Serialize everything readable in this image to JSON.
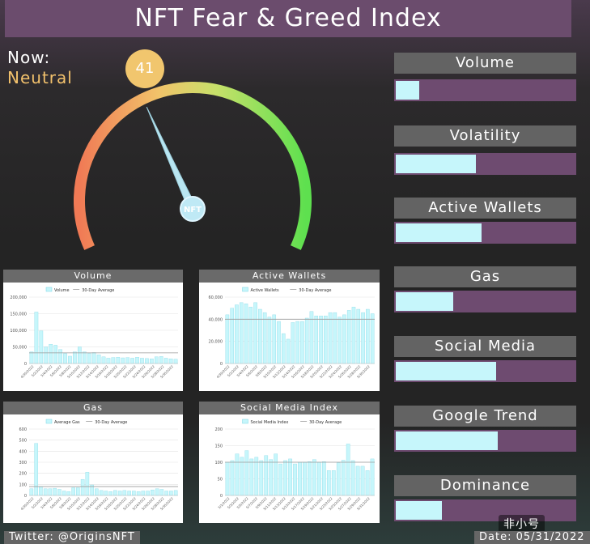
{
  "header": {
    "title": "NFT Fear & Greed Index"
  },
  "status": {
    "now_label": "Now:",
    "now_value": "Neutral",
    "score": "41",
    "score_value": 41,
    "score_max": 100,
    "gauge_label": "NFT"
  },
  "indicators": [
    {
      "label": "Volume",
      "fill": 0.13
    },
    {
      "label": "Volatility",
      "fill": 0.45
    },
    {
      "label": "Active Wallets",
      "fill": 0.48
    },
    {
      "label": "Gas",
      "fill": 0.32
    },
    {
      "label": "Social Media",
      "fill": 0.56
    },
    {
      "label": "Google Trend",
      "fill": 0.57
    },
    {
      "label": "Dominance",
      "fill": 0.26
    }
  ],
  "chart_data": [
    {
      "type": "bar",
      "title": "Volume",
      "legend": [
        "Volume",
        "30-Day Average"
      ],
      "ylim": [
        0,
        200000
      ],
      "yticks": [
        "0",
        "50,000",
        "100,000",
        "150,000",
        "200,000"
      ],
      "average": 32000,
      "values": [
        35000,
        155000,
        98000,
        50000,
        58000,
        55000,
        42000,
        30000,
        22000,
        35000,
        50000,
        35000,
        30000,
        33000,
        26000,
        20000,
        16000,
        18000,
        19000,
        17000,
        18000,
        16000,
        19000,
        16000,
        15000,
        14000,
        20000,
        21000,
        16000,
        14000,
        13000
      ],
      "xticks": [
        "4/30/2022",
        "5/2/2022",
        "5/4/2022",
        "5/6/2022",
        "5/8/2022",
        "5/10/2022",
        "5/12/2022",
        "5/14/2022",
        "5/16/2022",
        "5/18/2022",
        "5/20/2022",
        "5/22/2022",
        "5/24/2022",
        "5/26/2022",
        "5/28/2022",
        "5/30/2022"
      ]
    },
    {
      "type": "bar",
      "title": "Active Wallets",
      "legend": [
        "Active Wallets",
        "30-Day Average"
      ],
      "ylim": [
        0,
        60000
      ],
      "yticks": [
        "0",
        "20,000",
        "40,000",
        "60,000"
      ],
      "average": 40000,
      "values": [
        44000,
        50000,
        53000,
        55000,
        54000,
        51000,
        55000,
        49000,
        46000,
        42000,
        44000,
        38000,
        27000,
        22000,
        37000,
        38000,
        38000,
        41000,
        47000,
        43000,
        43000,
        43000,
        46000,
        46000,
        42000,
        44000,
        48000,
        51000,
        49000,
        46000,
        49000,
        45000
      ],
      "xticks": [
        "4/30/2022",
        "5/2/2022",
        "5/4/2022",
        "5/6/2022",
        "5/8/2022",
        "5/10/2022",
        "5/12/2022",
        "5/14/2022",
        "5/16/2022",
        "5/18/2022",
        "5/20/2022",
        "5/22/2022",
        "5/24/2022",
        "5/26/2022",
        "5/28/2022",
        "5/30/2022"
      ]
    },
    {
      "type": "bar",
      "title": "Gas",
      "legend": [
        "Average Gas",
        "30-Day Average"
      ],
      "ylim": [
        0,
        600
      ],
      "yticks": [
        "0",
        "100",
        "200",
        "300",
        "400",
        "500",
        "600"
      ],
      "average": 80,
      "values": [
        60,
        470,
        80,
        60,
        60,
        65,
        55,
        40,
        35,
        70,
        70,
        145,
        210,
        95,
        60,
        45,
        40,
        35,
        45,
        40,
        45,
        40,
        40,
        35,
        40,
        40,
        50,
        60,
        55,
        40,
        40,
        45
      ],
      "xticks": [
        "4/30/2022",
        "5/2/2022",
        "5/4/2022",
        "5/6/2022",
        "5/8/2022",
        "5/10/2022",
        "5/12/2022",
        "5/14/2022",
        "5/16/2022",
        "5/18/2022",
        "5/20/2022",
        "5/22/2022",
        "5/24/2022",
        "5/26/2022",
        "5/28/2022",
        "5/30/2022"
      ]
    },
    {
      "type": "bar",
      "title": "Social Media Index",
      "legend": [
        "Social Media Index",
        "30-Day Average"
      ],
      "ylim": [
        0,
        200
      ],
      "yticks": [
        "0",
        "50",
        "100",
        "150",
        "200"
      ],
      "average": 100,
      "values": [
        100,
        105,
        125,
        115,
        135,
        110,
        115,
        105,
        120,
        108,
        125,
        95,
        105,
        110,
        95,
        100,
        100,
        102,
        108,
        100,
        102,
        75,
        75,
        98,
        106,
        155,
        105,
        88,
        88,
        75,
        110
      ],
      "xticks": [
        "5/1/2022",
        "5/3/2022",
        "5/5/2022",
        "5/7/2022",
        "5/9/2022",
        "5/11/2022",
        "5/13/2022",
        "5/15/2022",
        "5/17/2022",
        "5/19/2022",
        "5/21/2022",
        "5/23/2022",
        "5/25/2022",
        "5/27/2022",
        "5/29/2022",
        "5/31/2022"
      ]
    }
  ],
  "footer": {
    "twitter": "Twitter: @OriginsNFT",
    "date": "Date: 05/31/2022",
    "watermark": "非小号"
  }
}
